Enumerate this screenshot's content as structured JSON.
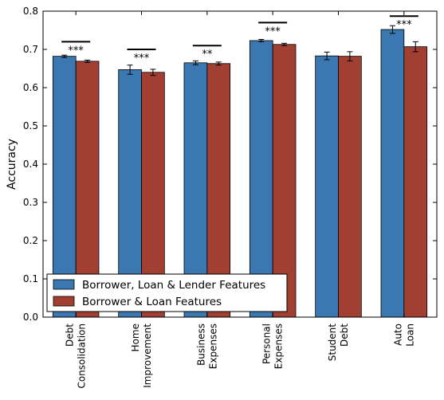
{
  "chart_data": {
    "type": "bar",
    "title": "",
    "xlabel": "",
    "ylabel": "Accuracy",
    "ylim": [
      0,
      0.8
    ],
    "yticks": [
      "0.0",
      "0.1",
      "0.2",
      "0.3",
      "0.4",
      "0.5",
      "0.6",
      "0.7",
      "0.8"
    ],
    "categories": [
      [
        "Debt",
        "Consolidation"
      ],
      [
        "Home",
        "Improvement"
      ],
      [
        "Business",
        "Expenses"
      ],
      [
        "Personal",
        "Expenses"
      ],
      [
        "Student",
        "Debt"
      ],
      [
        "Auto",
        "Loan"
      ]
    ],
    "series": [
      {
        "name": "Borrower, Loan & Lender Features",
        "color": "#3b78b1",
        "values": [
          0.682,
          0.647,
          0.665,
          0.723,
          0.683,
          0.752
        ],
        "errors": [
          0.003,
          0.012,
          0.005,
          0.003,
          0.01,
          0.01
        ]
      },
      {
        "name": "Borrower & Loan Features",
        "color": "#a13f33",
        "values": [
          0.669,
          0.64,
          0.663,
          0.713,
          0.682,
          0.707
        ],
        "errors": [
          0.003,
          0.008,
          0.004,
          0.003,
          0.012,
          0.013
        ]
      }
    ],
    "significance": [
      {
        "category": 0,
        "label": "***",
        "level": 0.72
      },
      {
        "category": 1,
        "label": "***",
        "level": 0.7
      },
      {
        "category": 2,
        "label": "**",
        "level": 0.71
      },
      {
        "category": 3,
        "label": "***",
        "level": 0.77
      },
      {
        "category": 5,
        "label": "***",
        "level": 0.787
      }
    ],
    "legend_position": "lower-left",
    "grid": false
  }
}
